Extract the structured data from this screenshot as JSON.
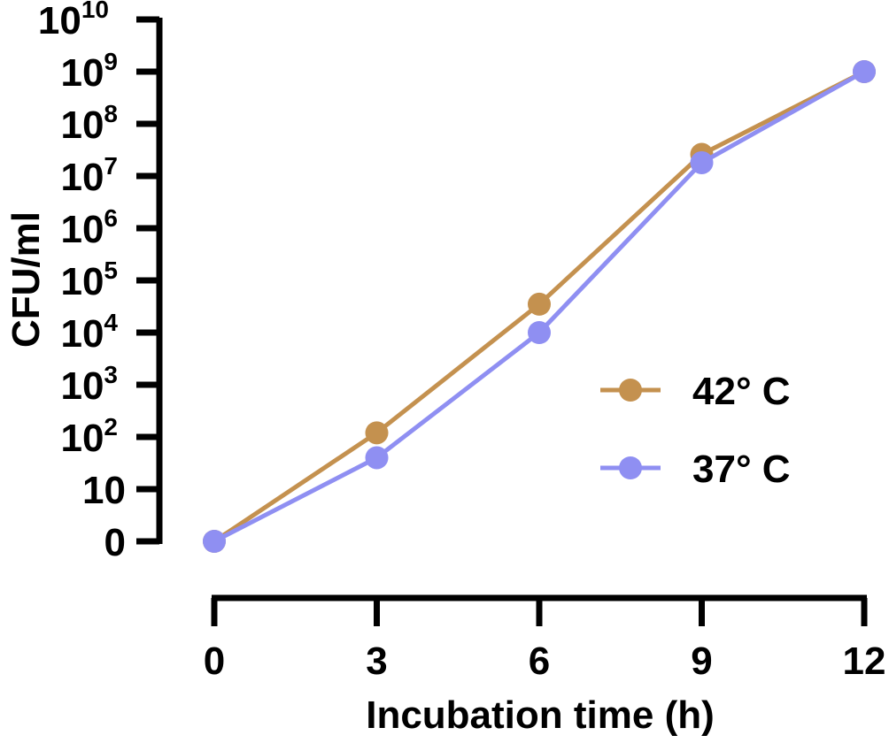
{
  "chart_data": {
    "type": "line",
    "xlabel": "Incubation time (h)",
    "ylabel": "CFU/ml",
    "x": [
      0,
      3,
      6,
      9,
      12
    ],
    "x_ticks": [
      "0",
      "3",
      "6",
      "9",
      "12"
    ],
    "xlim": [
      0,
      12
    ],
    "y_scale": "log10 (axis starts at 0, then 10 … 10^10)",
    "ylim": [
      1,
      10000000000
    ],
    "y_ticks": [
      {
        "base": "0",
        "exp": ""
      },
      {
        "base": "10",
        "exp": ""
      },
      {
        "base": "10",
        "exp": "2"
      },
      {
        "base": "10",
        "exp": "3"
      },
      {
        "base": "10",
        "exp": "4"
      },
      {
        "base": "10",
        "exp": "5"
      },
      {
        "base": "10",
        "exp": "6"
      },
      {
        "base": "10",
        "exp": "7"
      },
      {
        "base": "10",
        "exp": "8"
      },
      {
        "base": "10",
        "exp": "9"
      },
      {
        "base": "10",
        "exp": "10"
      }
    ],
    "series": [
      {
        "name": "42° C",
        "color": "#c4914f",
        "values": [
          1,
          120,
          35000,
          26000000,
          1000000000
        ]
      },
      {
        "name": "37° C",
        "color": "#8f8ff2",
        "values": [
          1,
          40,
          10000,
          18000000,
          1000000000
        ]
      }
    ],
    "grid": false,
    "legend_position": "right"
  }
}
